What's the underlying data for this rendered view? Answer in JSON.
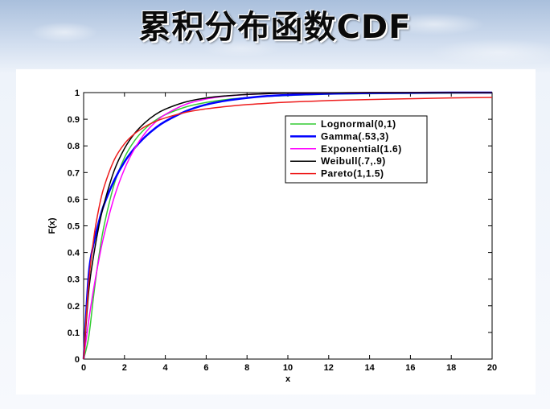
{
  "slide": {
    "title": "累积分布函数CDF"
  },
  "chart_data": {
    "type": "line",
    "title": "",
    "xlabel": "x",
    "ylabel": "F(x)",
    "xlim": [
      0,
      20
    ],
    "ylim": [
      0,
      1
    ],
    "xticks": [
      0,
      2,
      4,
      6,
      8,
      10,
      12,
      14,
      16,
      18,
      20
    ],
    "yticks": [
      0,
      0.1,
      0.2,
      0.3,
      0.4,
      0.5,
      0.6,
      0.7,
      0.8,
      0.9,
      1
    ],
    "ytick_labels": [
      "0",
      "0.1",
      "0.2",
      "0.3",
      "0.4",
      "0.5",
      "0.6",
      "0.7",
      "0.8",
      "0.9",
      "1"
    ],
    "grid": false,
    "legend_position": "upper-right",
    "x": [
      0,
      0.25,
      0.5,
      0.75,
      1,
      1.5,
      2,
      2.5,
      3,
      3.5,
      4,
      5,
      6,
      7,
      8,
      9,
      10,
      12,
      14,
      16,
      18,
      20
    ],
    "series": [
      {
        "name": "Lognormal(0,1)",
        "color": "#33cc33",
        "width": 1.5,
        "values": [
          0,
          0.083,
          0.244,
          0.387,
          0.5,
          0.657,
          0.756,
          0.82,
          0.864,
          0.895,
          0.917,
          0.946,
          0.963,
          0.974,
          0.981,
          0.986,
          0.989,
          0.994,
          0.996,
          0.997,
          0.998,
          0.999
        ]
      },
      {
        "name": "Gamma(.53,3)",
        "color": "#0000ff",
        "width": 2.5,
        "values": [
          0,
          0.318,
          0.436,
          0.516,
          0.58,
          0.671,
          0.74,
          0.792,
          0.833,
          0.866,
          0.892,
          0.93,
          0.955,
          0.97,
          0.98,
          0.987,
          0.991,
          0.996,
          0.998,
          0.999,
          1.0,
          1.0
        ]
      },
      {
        "name": "Exponential(1.6)",
        "color": "#ff00ff",
        "width": 1.5,
        "values": [
          0,
          0.145,
          0.268,
          0.374,
          0.465,
          0.608,
          0.713,
          0.79,
          0.847,
          0.888,
          0.918,
          0.956,
          0.976,
          0.987,
          0.993,
          0.996,
          0.998,
          0.999,
          1.0,
          1.0,
          1.0,
          1.0
        ]
      },
      {
        "name": "Weibull(.7,.9)",
        "color": "#000000",
        "width": 1.5,
        "values": [
          0,
          0.255,
          0.393,
          0.5,
          0.583,
          0.708,
          0.79,
          0.847,
          0.887,
          0.917,
          0.938,
          0.965,
          0.98,
          0.988,
          0.993,
          0.996,
          0.998,
          0.999,
          1.0,
          1.0,
          1.0,
          1.0
        ]
      },
      {
        "name": "Pareto(1,1.5)",
        "color": "#ee1c1c",
        "width": 1.5,
        "values": [
          0,
          0.286,
          0.456,
          0.567,
          0.646,
          0.748,
          0.808,
          0.846,
          0.872,
          0.891,
          0.905,
          0.926,
          0.939,
          0.948,
          0.955,
          0.96,
          0.964,
          0.97,
          0.974,
          0.977,
          0.98,
          0.982
        ]
      }
    ]
  }
}
